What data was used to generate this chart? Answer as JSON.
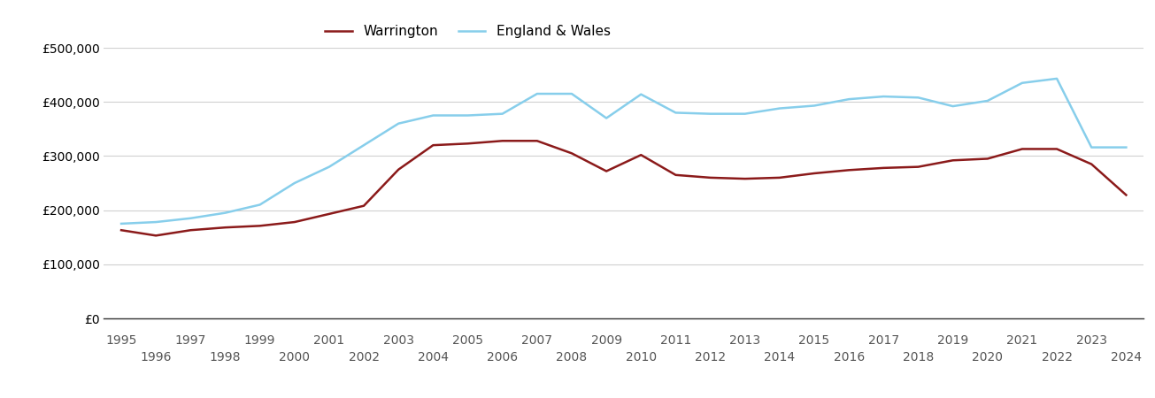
{
  "years": [
    1995,
    1996,
    1997,
    1998,
    1999,
    2000,
    2001,
    2002,
    2003,
    2004,
    2005,
    2006,
    2007,
    2008,
    2009,
    2010,
    2011,
    2012,
    2013,
    2014,
    2015,
    2016,
    2017,
    2018,
    2019,
    2020,
    2021,
    2022,
    2023,
    2024
  ],
  "warrington": [
    163000,
    153000,
    163000,
    168000,
    171000,
    178000,
    193000,
    208000,
    275000,
    320000,
    323000,
    328000,
    328000,
    305000,
    272000,
    302000,
    265000,
    260000,
    258000,
    260000,
    268000,
    274000,
    278000,
    280000,
    292000,
    295000,
    313000,
    313000,
    285000,
    228000
  ],
  "england_wales": [
    175000,
    178000,
    185000,
    195000,
    210000,
    250000,
    280000,
    320000,
    360000,
    375000,
    375000,
    378000,
    415000,
    415000,
    370000,
    414000,
    380000,
    378000,
    378000,
    388000,
    393000,
    405000,
    410000,
    408000,
    392000,
    402000,
    435000,
    443000,
    316000,
    316000
  ],
  "warrington_color": "#8B1A1A",
  "england_wales_color": "#87CEEB",
  "background_color": "#ffffff",
  "grid_color": "#d0d0d0",
  "ylim": [
    0,
    500000
  ],
  "yticks": [
    0,
    100000,
    200000,
    300000,
    400000,
    500000
  ],
  "ytick_labels": [
    "£0",
    "£100,000",
    "£200,000",
    "£300,000",
    "£400,000",
    "£500,000"
  ],
  "legend_warrington": "Warrington",
  "legend_england_wales": "England & Wales",
  "legend_fontsize": 11,
  "tick_fontsize": 10,
  "line_width": 1.8
}
